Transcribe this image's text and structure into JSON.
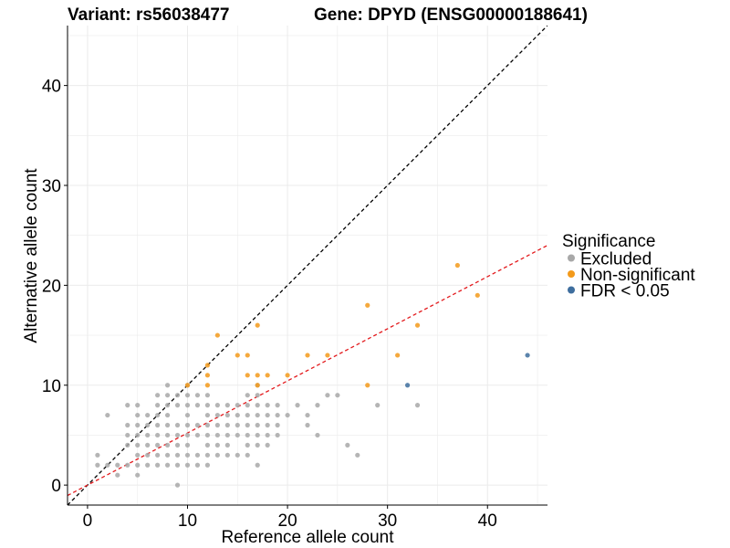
{
  "chart_data": {
    "type": "scatter",
    "title_left": "Variant: rs56038477",
    "title_right": "Gene: DPYD (ENSG00000188641)",
    "xlabel": "Reference allele count",
    "ylabel": "Alternative allele count",
    "xlim": [
      -2,
      46
    ],
    "ylim": [
      -2,
      46
    ],
    "xticks": [
      0,
      10,
      20,
      30,
      40
    ],
    "yticks": [
      0,
      10,
      20,
      30,
      40
    ],
    "grid": true,
    "legend": {
      "title": "Significance",
      "position": "right",
      "entries": [
        {
          "label": "Excluded",
          "color": "#a8a8a8"
        },
        {
          "label": "Non-significant",
          "color": "#f39a1b"
        },
        {
          "label": "FDR < 0.05",
          "color": "#3e6e9e"
        }
      ]
    },
    "reference_lines": [
      {
        "name": "identity",
        "slope": 1,
        "intercept": 0,
        "color": "#000000",
        "style": "dashed"
      },
      {
        "name": "fit",
        "slope": 0.5217,
        "intercept": 0,
        "color": "#e3191c",
        "style": "dashed"
      }
    ],
    "series": [
      {
        "name": "Excluded",
        "color": "#a8a8a8",
        "points": [
          [
            1,
            3
          ],
          [
            1,
            2
          ],
          [
            2,
            7
          ],
          [
            2,
            2
          ],
          [
            3,
            2
          ],
          [
            3,
            1
          ],
          [
            4,
            2
          ],
          [
            4,
            4
          ],
          [
            4,
            5
          ],
          [
            4,
            6
          ],
          [
            4,
            8
          ],
          [
            5,
            1
          ],
          [
            5,
            2
          ],
          [
            5,
            3
          ],
          [
            5,
            4
          ],
          [
            5,
            5
          ],
          [
            5,
            6
          ],
          [
            5,
            7
          ],
          [
            5,
            8
          ],
          [
            6,
            2
          ],
          [
            6,
            3
          ],
          [
            6,
            4
          ],
          [
            6,
            5
          ],
          [
            6,
            6
          ],
          [
            6,
            7
          ],
          [
            7,
            2
          ],
          [
            7,
            3
          ],
          [
            7,
            4
          ],
          [
            7,
            5
          ],
          [
            7,
            6
          ],
          [
            7,
            7
          ],
          [
            7,
            8
          ],
          [
            7,
            9
          ],
          [
            8,
            2
          ],
          [
            8,
            3
          ],
          [
            8,
            4
          ],
          [
            8,
            5
          ],
          [
            8,
            6
          ],
          [
            8,
            7
          ],
          [
            8,
            8
          ],
          [
            8,
            9
          ],
          [
            8,
            10
          ],
          [
            9,
            0
          ],
          [
            9,
            2
          ],
          [
            9,
            3
          ],
          [
            9,
            4
          ],
          [
            9,
            5
          ],
          [
            9,
            6
          ],
          [
            9,
            8
          ],
          [
            9,
            9
          ],
          [
            10,
            2
          ],
          [
            10,
            3
          ],
          [
            10,
            4
          ],
          [
            10,
            5
          ],
          [
            10,
            6
          ],
          [
            10,
            7
          ],
          [
            10,
            8
          ],
          [
            10,
            9
          ],
          [
            10,
            10
          ],
          [
            11,
            2
          ],
          [
            11,
            3
          ],
          [
            11,
            5
          ],
          [
            11,
            6
          ],
          [
            11,
            8
          ],
          [
            11,
            9
          ],
          [
            12,
            2
          ],
          [
            12,
            3
          ],
          [
            12,
            4
          ],
          [
            12,
            5
          ],
          [
            12,
            6
          ],
          [
            12,
            7
          ],
          [
            12,
            8
          ],
          [
            12,
            9
          ],
          [
            13,
            3
          ],
          [
            13,
            4
          ],
          [
            13,
            5
          ],
          [
            13,
            6
          ],
          [
            13,
            7
          ],
          [
            13,
            8
          ],
          [
            14,
            3
          ],
          [
            14,
            4
          ],
          [
            14,
            5
          ],
          [
            14,
            6
          ],
          [
            14,
            7
          ],
          [
            14,
            8
          ],
          [
            15,
            3
          ],
          [
            15,
            5
          ],
          [
            15,
            6
          ],
          [
            15,
            7
          ],
          [
            15,
            8
          ],
          [
            16,
            3
          ],
          [
            16,
            4
          ],
          [
            16,
            5
          ],
          [
            16,
            6
          ],
          [
            16,
            7
          ],
          [
            16,
            8
          ],
          [
            16,
            9
          ],
          [
            17,
            2
          ],
          [
            17,
            4
          ],
          [
            17,
            5
          ],
          [
            17,
            6
          ],
          [
            17,
            7
          ],
          [
            17,
            8
          ],
          [
            17,
            9
          ],
          [
            17,
            10
          ],
          [
            18,
            4
          ],
          [
            18,
            5
          ],
          [
            18,
            6
          ],
          [
            18,
            7
          ],
          [
            18,
            8
          ],
          [
            19,
            5
          ],
          [
            19,
            6
          ],
          [
            19,
            7
          ],
          [
            19,
            8
          ],
          [
            20,
            7
          ],
          [
            21,
            8
          ],
          [
            22,
            6
          ],
          [
            22,
            7
          ],
          [
            23,
            5
          ],
          [
            23,
            8
          ],
          [
            24,
            9
          ],
          [
            25,
            9
          ],
          [
            26,
            4
          ],
          [
            27,
            3
          ],
          [
            29,
            8
          ],
          [
            33,
            8
          ]
        ]
      },
      {
        "name": "Non-significant",
        "color": "#f39a1b",
        "points": [
          [
            12,
            12
          ],
          [
            12,
            11
          ],
          [
            13,
            15
          ],
          [
            15,
            13
          ],
          [
            16,
            13
          ],
          [
            16,
            11
          ],
          [
            17,
            16
          ],
          [
            17,
            11
          ],
          [
            18,
            11
          ],
          [
            20,
            11
          ],
          [
            22,
            13
          ],
          [
            24,
            13
          ],
          [
            28,
            18
          ],
          [
            28,
            10
          ],
          [
            31,
            13
          ],
          [
            33,
            16
          ],
          [
            37,
            22
          ],
          [
            39,
            19
          ],
          [
            10,
            10
          ],
          [
            12,
            10
          ],
          [
            17,
            10
          ]
        ]
      },
      {
        "name": "FDR < 0.05",
        "color": "#3e6e9e",
        "points": [
          [
            32,
            10
          ],
          [
            44,
            13
          ]
        ]
      }
    ]
  }
}
